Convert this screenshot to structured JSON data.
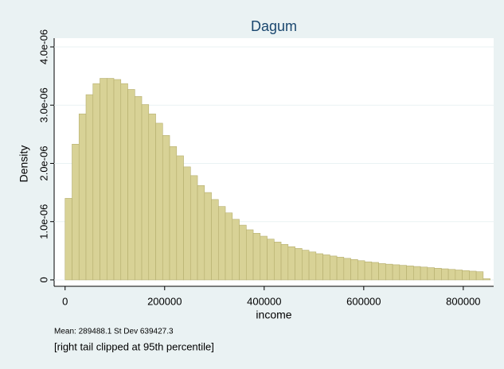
{
  "chart_data": {
    "type": "histogram",
    "title": "Dagum",
    "xlabel": "income",
    "ylabel": "Density",
    "note": "Mean: 289488.1 St Dev 639427.3",
    "caption": "[right tail clipped at 95th percentile]",
    "color": "#d8d296",
    "edge_color": "#b5ae6e",
    "grid": true,
    "bins": [
      0,
      14000,
      28000,
      42000,
      56000,
      70000,
      84000,
      98000,
      112000,
      126000,
      140000,
      154000,
      168000,
      182000,
      196000,
      210000,
      224000,
      238000,
      252000,
      266000,
      280000,
      294000,
      308000,
      322000,
      336000,
      350000,
      364000,
      378000,
      392000,
      406000,
      420000,
      434000,
      448000,
      462000,
      476000,
      490000,
      504000,
      518000,
      532000,
      546000,
      560000,
      574000,
      588000,
      602000,
      616000,
      630000,
      644000,
      658000,
      672000,
      686000,
      700000,
      714000,
      728000,
      742000,
      756000,
      770000,
      784000,
      798000,
      812000,
      826000,
      840000,
      854000
    ],
    "values": [
      1.4e-06,
      2.33e-06,
      2.85e-06,
      3.18e-06,
      3.37e-06,
      3.46e-06,
      3.46e-06,
      3.44e-06,
      3.37e-06,
      3.27e-06,
      3.15e-06,
      3.01e-06,
      2.85e-06,
      2.69e-06,
      2.48e-06,
      2.29e-06,
      2.13e-06,
      1.94e-06,
      1.79e-06,
      1.62e-06,
      1.5e-06,
      1.38e-06,
      1.26e-06,
      1.15e-06,
      1.04e-06,
      9.4e-07,
      8.6e-07,
      8e-07,
      7.5e-07,
      7e-07,
      6.5e-07,
      6.1e-07,
      5.7e-07,
      5.4e-07,
      5.1e-07,
      4.8e-07,
      4.5e-07,
      4.3e-07,
      4.1e-07,
      3.9e-07,
      3.7e-07,
      3.5e-07,
      3.3e-07,
      3.1e-07,
      3e-07,
      2.8e-07,
      2.7e-07,
      2.6e-07,
      2.5e-07,
      2.4e-07,
      2.3e-07,
      2.2e-07,
      2.1e-07,
      2e-07,
      1.9e-07,
      1.8e-07,
      1.7e-07,
      1.6e-07,
      1.5e-07,
      1.4e-07,
      2e-08
    ],
    "xlim": [
      -22000,
      861000
    ],
    "xticks": [
      0,
      200000,
      400000,
      600000,
      800000
    ],
    "ylim": [
      -1.1e-07,
      4.15e-06
    ],
    "yticks": [
      0,
      {
        "value": 1e-06,
        "label": "1.0e-06"
      },
      {
        "value": 2e-06,
        "label": "2.0e-06"
      },
      {
        "value": 3e-06,
        "label": "3.0e-06"
      },
      {
        "value": 4e-06,
        "label": "4.0e-06"
      }
    ]
  }
}
